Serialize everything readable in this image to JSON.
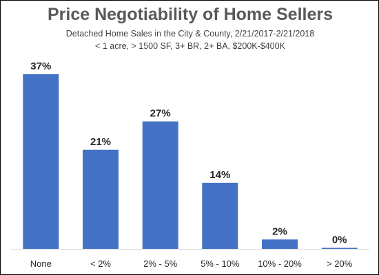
{
  "chart_data": {
    "type": "bar",
    "title": "Price Negotiability of Home Sellers",
    "subtitle": [
      "Detached Home Sales in the City & County, 2/21/2017-2/21/2018",
      "< 1 acre, > 1500 SF, 3+ BR, 2+ BA, $200K-$400K"
    ],
    "categories": [
      "None",
      "< 2%",
      "2% - 5%",
      "5% - 10%",
      "10% - 20%",
      "> 20%"
    ],
    "values": [
      37,
      21,
      27,
      14,
      2,
      0
    ],
    "data_labels": [
      "37%",
      "21%",
      "27%",
      "14%",
      "2%",
      "0%"
    ],
    "xlabel": "",
    "ylabel": "",
    "ylim": [
      0,
      37
    ],
    "grid": false,
    "legend": "none",
    "bar_color": "#4472C4",
    "axis_color": "#D9D9D9",
    "title_color": "#595959"
  }
}
